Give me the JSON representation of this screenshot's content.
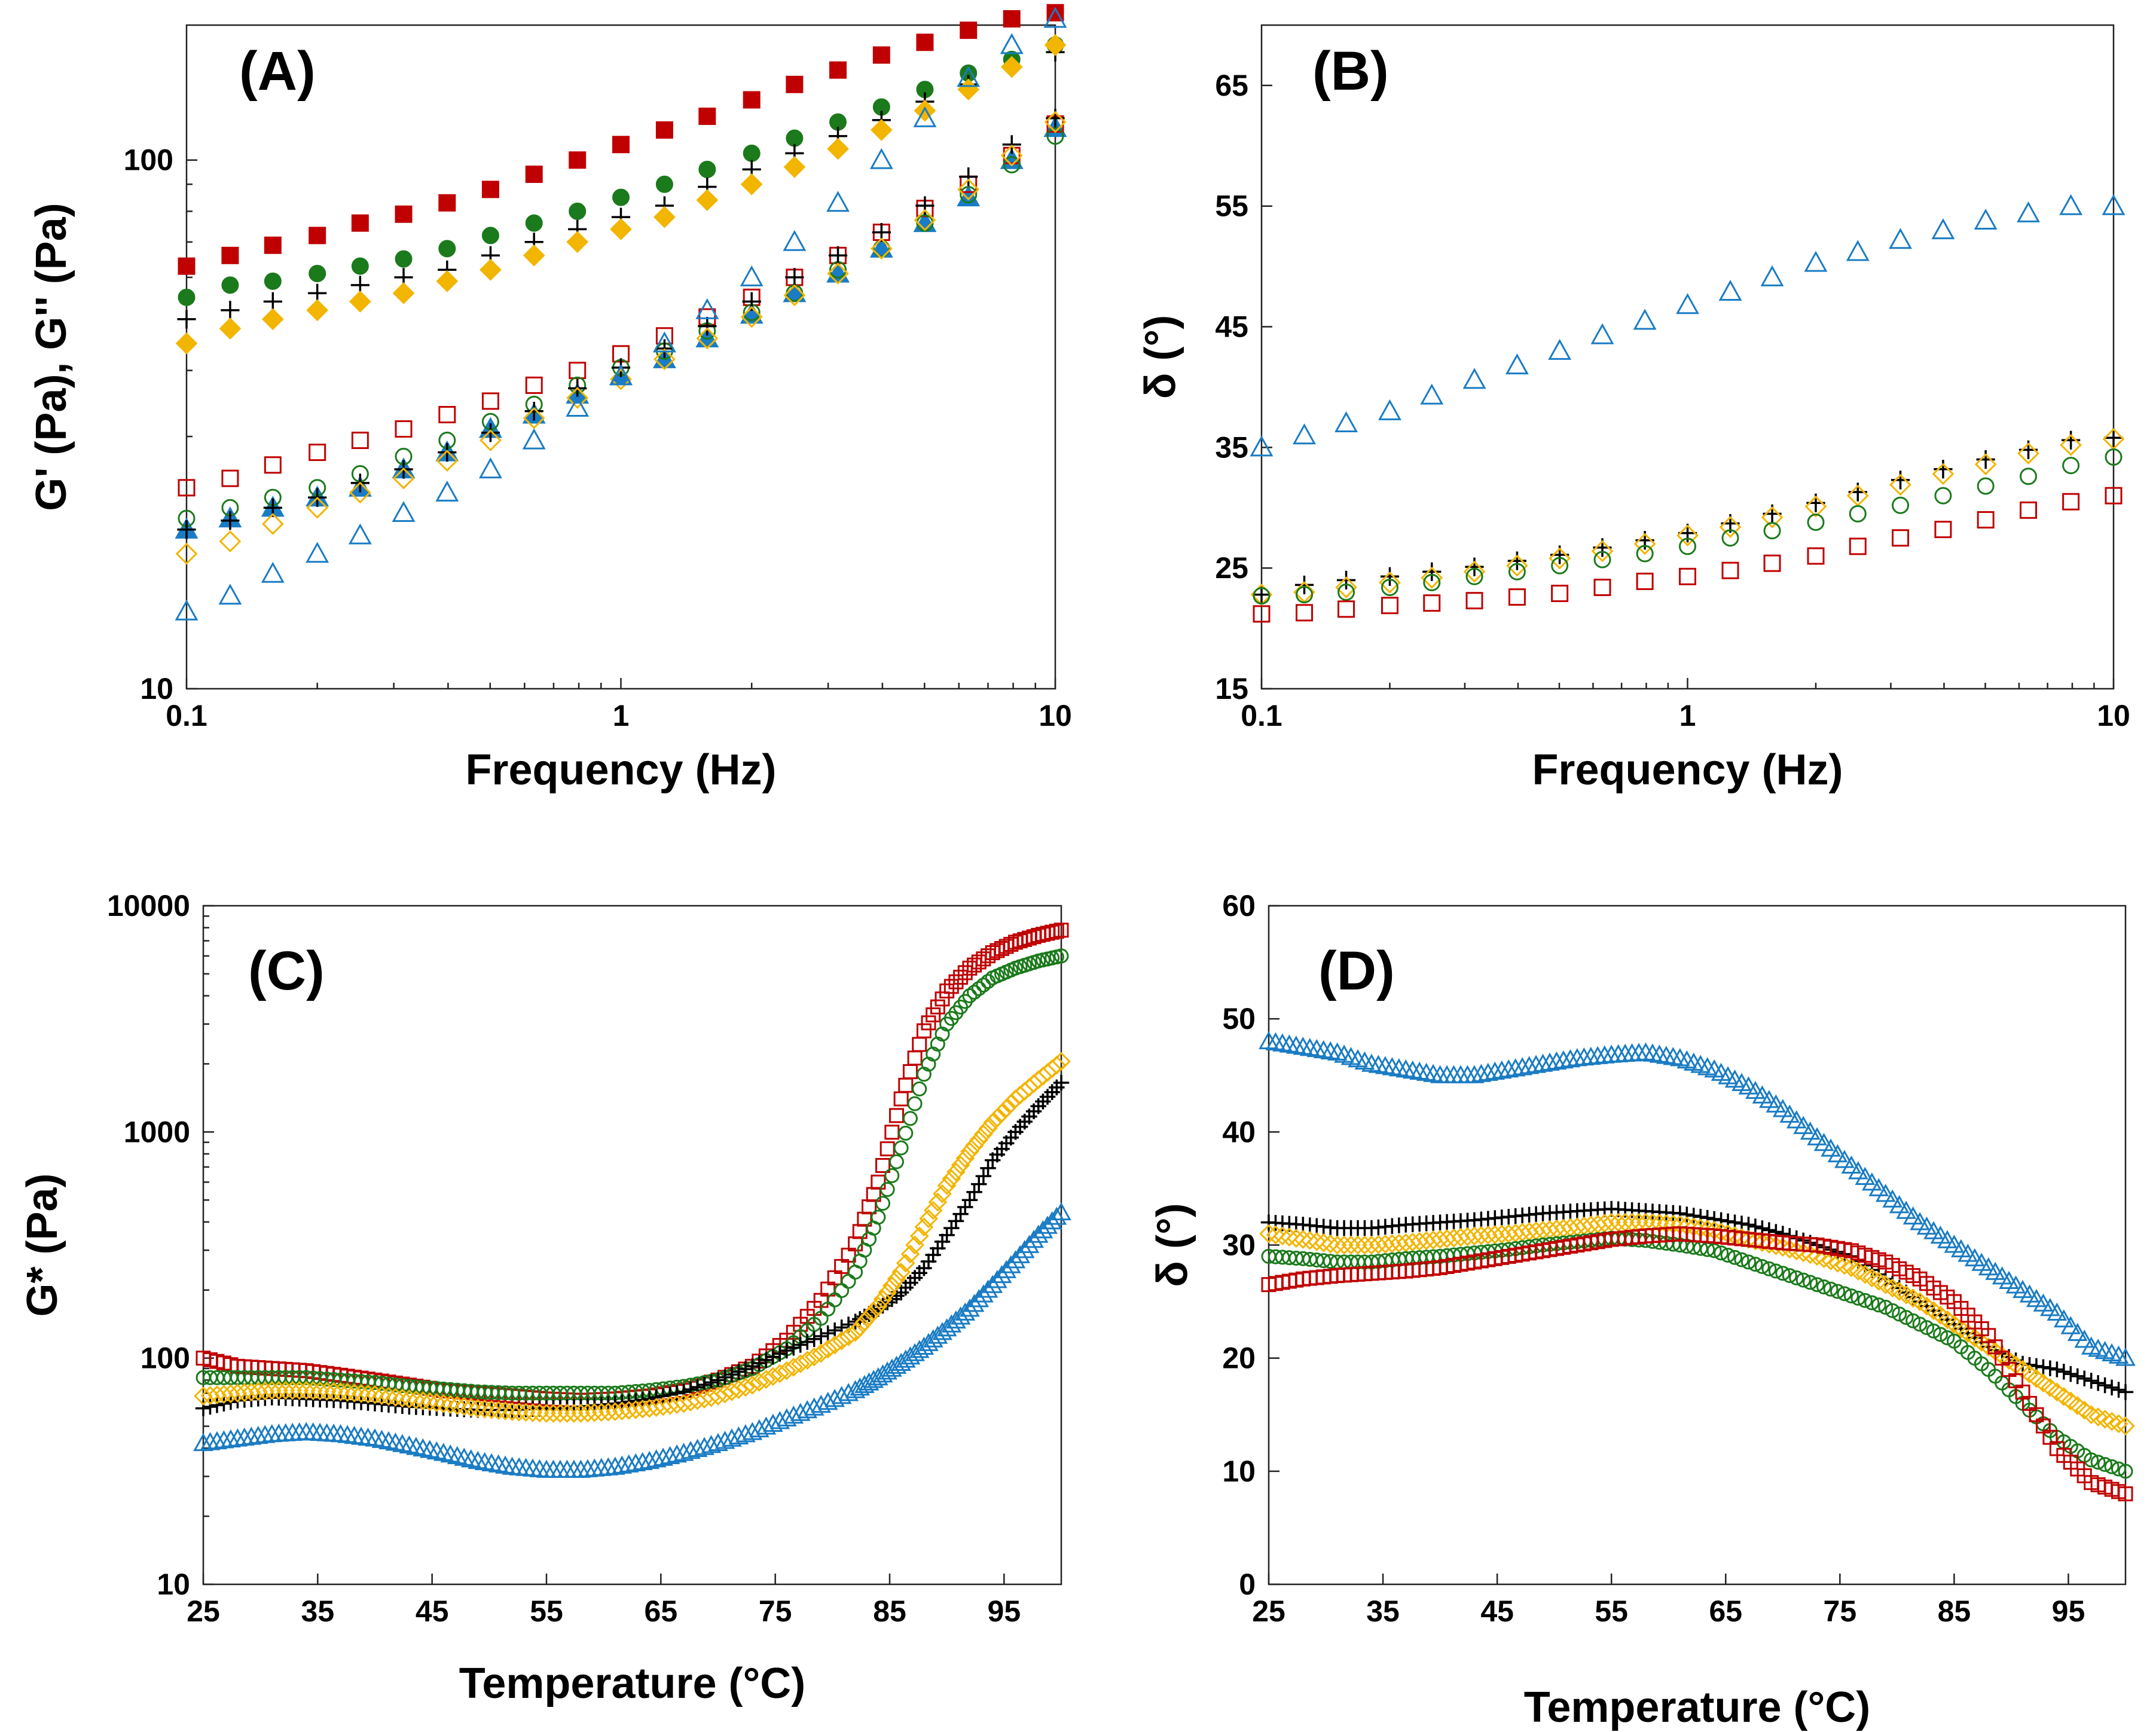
{
  "colors": {
    "red": "#c00000",
    "green": "#1b7a1b",
    "black": "#000000",
    "gold": "#f2b500",
    "blue": "#1a7cc4"
  },
  "chart_data": [
    {
      "panel": "A",
      "label": "(A)",
      "type": "scatter",
      "x_scale": "log",
      "y_scale": "log",
      "xlim": [
        0.1,
        10
      ],
      "ylim": [
        10,
        180
      ],
      "xticks": [
        0.1,
        1,
        10
      ],
      "xtick_labels": [
        "0.1",
        "1",
        "10"
      ],
      "yticks": [
        10,
        100
      ],
      "ytick_labels": [
        "10",
        "100"
      ],
      "xlabel": "Frequency (Hz)",
      "ylabel": "G' (Pa), G'' (Pa)",
      "x": [
        0.1,
        0.126,
        0.158,
        0.2,
        0.251,
        0.316,
        0.398,
        0.501,
        0.631,
        0.794,
        1.0,
        1.26,
        1.58,
        2.0,
        2.51,
        3.16,
        3.98,
        5.01,
        6.31,
        7.94,
        10.0
      ],
      "series": [
        {
          "name": "G' red",
          "color": "red",
          "marker": "square",
          "filled": true,
          "values": [
            63,
            66,
            69,
            72,
            76,
            79,
            83,
            88,
            94,
            100,
            107,
            114,
            121,
            130,
            139,
            148,
            158,
            167,
            176,
            185,
            190
          ]
        },
        {
          "name": "G' green",
          "color": "green",
          "marker": "circle",
          "filled": true,
          "values": [
            55,
            58,
            59,
            61,
            63,
            65,
            68,
            72,
            76,
            80,
            85,
            90,
            96,
            103,
            110,
            118,
            126,
            136,
            146,
            155,
            165
          ]
        },
        {
          "name": "G' black",
          "color": "black",
          "marker": "plus",
          "filled": false,
          "values": [
            50,
            52,
            54,
            56,
            58,
            60,
            62,
            66,
            70,
            74,
            78,
            82,
            89,
            96,
            103,
            111,
            119,
            129,
            139,
            150,
            160
          ]
        },
        {
          "name": "G' gold",
          "color": "gold",
          "marker": "diamond",
          "filled": true,
          "values": [
            45,
            48,
            50,
            52,
            54,
            56,
            59,
            62,
            66,
            70,
            74,
            78,
            84,
            90,
            97,
            105,
            114,
            124,
            136,
            150,
            165
          ]
        },
        {
          "name": "G' blue",
          "color": "blue",
          "marker": "triangle",
          "filled": true,
          "values": [
            20,
            21,
            22,
            23,
            24,
            26,
            28,
            31,
            33,
            36,
            39,
            42,
            46,
            51,
            56,
            61,
            68,
            76,
            85,
            100,
            115
          ]
        },
        {
          "name": "G'' red",
          "color": "red",
          "marker": "square",
          "filled": false,
          "values": [
            24,
            25,
            26.5,
            28,
            29.5,
            31,
            33,
            35,
            37.5,
            40,
            43,
            46.5,
            50.5,
            55,
            60,
            66,
            73,
            81,
            90,
            102,
            117
          ]
        },
        {
          "name": "G'' green",
          "color": "green",
          "marker": "circle",
          "filled": false,
          "values": [
            21,
            22,
            23,
            24,
            25.5,
            27.5,
            29.5,
            32,
            34.5,
            37.5,
            40.5,
            43.5,
            47.5,
            51.5,
            56,
            62,
            68,
            76,
            86,
            98,
            111
          ]
        },
        {
          "name": "G'' black",
          "color": "black",
          "marker": "plus",
          "filled": false,
          "values": [
            20,
            20.8,
            22,
            23,
            24.5,
            26,
            28,
            30.5,
            33.5,
            37,
            40.5,
            44,
            48.5,
            54,
            60,
            66,
            73,
            82,
            93,
            107,
            120
          ]
        },
        {
          "name": "G'' gold",
          "color": "gold",
          "marker": "diamond",
          "filled": false,
          "values": [
            18,
            19,
            20.5,
            22,
            23.5,
            25,
            27,
            29.5,
            32.5,
            35.5,
            38.5,
            42,
            46,
            50.5,
            55.5,
            61,
            68,
            77,
            88,
            102,
            118
          ]
        },
        {
          "name": "G'' blue",
          "color": "blue",
          "marker": "triangle",
          "filled": false,
          "values": [
            14,
            15,
            16.5,
            18,
            19.5,
            21.5,
            23.5,
            26,
            29.5,
            34,
            39,
            45,
            52,
            60,
            70,
            83,
            100,
            120,
            143,
            165,
            185
          ]
        }
      ]
    },
    {
      "panel": "B",
      "label": "(B)",
      "type": "scatter",
      "x_scale": "log",
      "y_scale": "linear",
      "xlim": [
        0.1,
        10
      ],
      "ylim": [
        15,
        70
      ],
      "xticks": [
        0.1,
        1,
        10
      ],
      "xtick_labels": [
        "0.1",
        "1",
        "10"
      ],
      "yticks": [
        15,
        25,
        35,
        45,
        55,
        65
      ],
      "ytick_labels": [
        "15",
        "25",
        "35",
        "45",
        "55",
        "65"
      ],
      "xlabel": "Frequency (Hz)",
      "ylabel": "δ (°)",
      "x": [
        0.1,
        0.126,
        0.158,
        0.2,
        0.251,
        0.316,
        0.398,
        0.501,
        0.631,
        0.794,
        1.0,
        1.26,
        1.58,
        2.0,
        2.51,
        3.16,
        3.98,
        5.01,
        6.31,
        7.94,
        10.0
      ],
      "series": [
        {
          "name": "blue",
          "color": "blue",
          "marker": "triangle",
          "filled": false,
          "values": [
            35,
            36,
            37,
            38,
            39.3,
            40.6,
            41.8,
            43,
            44.3,
            45.5,
            46.8,
            47.9,
            49.1,
            50.3,
            51.2,
            52.2,
            53,
            53.8,
            54.4,
            55,
            55
          ]
        },
        {
          "name": "black",
          "color": "black",
          "marker": "plus",
          "filled": false,
          "values": [
            22.8,
            23.6,
            24,
            24.3,
            24.7,
            25.1,
            25.6,
            26.1,
            26.7,
            27.3,
            27.9,
            28.7,
            29.5,
            30.4,
            31.3,
            32.3,
            33.2,
            34,
            34.8,
            35.6,
            35.8
          ]
        },
        {
          "name": "gold",
          "color": "gold",
          "marker": "diamond",
          "filled": false,
          "values": [
            22.8,
            23,
            23.4,
            23.8,
            24.2,
            24.7,
            25.2,
            25.8,
            26.4,
            27,
            27.7,
            28.4,
            29.2,
            30.1,
            31,
            31.9,
            32.8,
            33.6,
            34.5,
            35.2,
            35.7
          ]
        },
        {
          "name": "green",
          "color": "green",
          "marker": "circle",
          "filled": false,
          "values": [
            22.7,
            22.8,
            23,
            23.4,
            23.8,
            24.3,
            24.7,
            25.2,
            25.7,
            26.2,
            26.8,
            27.5,
            28.1,
            28.8,
            29.5,
            30.2,
            31,
            31.8,
            32.6,
            33.5,
            34.2
          ]
        },
        {
          "name": "red",
          "color": "red",
          "marker": "square",
          "filled": false,
          "values": [
            21.2,
            21.3,
            21.6,
            21.9,
            22.1,
            22.3,
            22.6,
            22.9,
            23.4,
            23.9,
            24.3,
            24.8,
            25.4,
            26,
            26.8,
            27.5,
            28.2,
            29,
            29.8,
            30.5,
            31
          ]
        }
      ]
    },
    {
      "panel": "C",
      "label": "(C)",
      "type": "scatter",
      "x_scale": "linear",
      "y_scale": "log",
      "xlim": [
        25,
        100
      ],
      "ylim": [
        10,
        10000
      ],
      "xticks": [
        25,
        35,
        45,
        55,
        65,
        75,
        85,
        95
      ],
      "xtick_labels": [
        "25",
        "35",
        "45",
        "55",
        "65",
        "75",
        "85",
        "95"
      ],
      "yticks": [
        10,
        100,
        1000,
        10000
      ],
      "ytick_labels": [
        "10",
        "100",
        "1000",
        "10000"
      ],
      "xlabel": "Temperature (°C)",
      "ylabel": "G* (Pa)",
      "x": [
        25,
        28,
        31,
        34,
        37,
        40,
        43,
        46,
        49,
        52,
        55,
        58,
        61,
        64,
        67,
        70,
        73,
        76,
        79,
        82,
        84,
        86,
        88,
        90,
        92,
        94,
        96,
        98,
        100
      ],
      "series": [
        {
          "name": "red",
          "color": "red",
          "marker": "square",
          "filled": false,
          "values": [
            100,
            92,
            90,
            88,
            84,
            80,
            76,
            72,
            70,
            68,
            66,
            65,
            66,
            68,
            72,
            80,
            92,
            120,
            180,
            320,
            600,
            1400,
            2800,
            4200,
            5300,
            6200,
            6900,
            7400,
            7800
          ]
        },
        {
          "name": "green",
          "color": "green",
          "marker": "circle",
          "filled": false,
          "values": [
            82,
            82,
            82,
            82,
            80,
            78,
            75,
            73,
            71,
            70,
            70,
            70,
            70,
            72,
            75,
            80,
            90,
            110,
            150,
            240,
            420,
            850,
            1800,
            3000,
            4000,
            4800,
            5300,
            5700,
            6000
          ]
        },
        {
          "name": "black",
          "color": "black",
          "marker": "plus",
          "filled": false,
          "values": [
            60,
            65,
            67,
            66,
            65,
            63,
            61,
            60,
            59,
            59,
            60,
            61,
            63,
            66,
            71,
            80,
            92,
            108,
            125,
            145,
            165,
            195,
            250,
            350,
            500,
            750,
            1000,
            1300,
            1650
          ]
        },
        {
          "name": "gold",
          "color": "gold",
          "marker": "diamond",
          "filled": false,
          "values": [
            68,
            70,
            72,
            72,
            71,
            69,
            66,
            63,
            60,
            58,
            57,
            57,
            58,
            60,
            63,
            68,
            76,
            88,
            105,
            130,
            170,
            240,
            380,
            580,
            820,
            1100,
            1400,
            1700,
            2050
          ]
        },
        {
          "name": "blue",
          "color": "blue",
          "marker": "triangle",
          "filled": false,
          "values": [
            42,
            44,
            46,
            47,
            46,
            44,
            41,
            38,
            35,
            33,
            32,
            32,
            33,
            35,
            38,
            42,
            47,
            54,
            62,
            72,
            82,
            95,
            112,
            135,
            165,
            210,
            270,
            350,
            440
          ]
        }
      ]
    },
    {
      "panel": "D",
      "label": "(D)",
      "type": "scatter",
      "x_scale": "linear",
      "y_scale": "linear",
      "xlim": [
        25,
        100
      ],
      "ylim": [
        0,
        60
      ],
      "xticks": [
        25,
        35,
        45,
        55,
        65,
        75,
        85,
        95
      ],
      "xtick_labels": [
        "25",
        "35",
        "45",
        "55",
        "65",
        "75",
        "85",
        "95"
      ],
      "yticks": [
        0,
        10,
        20,
        30,
        40,
        50,
        60
      ],
      "ytick_labels": [
        "0",
        "10",
        "20",
        "30",
        "40",
        "50",
        "60"
      ],
      "xlabel": "Temperature (°C)",
      "ylabel": "δ (°)",
      "x": [
        25,
        28,
        31,
        34,
        37,
        40,
        43,
        46,
        49,
        52,
        55,
        58,
        61,
        64,
        67,
        70,
        73,
        76,
        79,
        82,
        85,
        88,
        91,
        94,
        97,
        100
      ],
      "series": [
        {
          "name": "blue",
          "color": "blue",
          "marker": "triangle",
          "filled": false,
          "values": [
            48,
            47.5,
            47,
            46,
            45.5,
            45,
            45,
            45.5,
            46,
            46.5,
            46.8,
            47,
            46.5,
            45.5,
            44,
            42,
            39.5,
            37,
            34.5,
            32,
            30,
            28,
            26,
            24,
            21,
            20
          ]
        },
        {
          "name": "black",
          "color": "black",
          "marker": "plus",
          "filled": false,
          "values": [
            32,
            31.8,
            31.5,
            31.5,
            31.8,
            32,
            32.2,
            32.5,
            32.8,
            33,
            33.2,
            33,
            32.8,
            32.3,
            31.8,
            31,
            30,
            29,
            27,
            25,
            23,
            21,
            19.5,
            19,
            18,
            17
          ]
        },
        {
          "name": "gold",
          "color": "gold",
          "marker": "diamond",
          "filled": false,
          "values": [
            31,
            30.5,
            30,
            30,
            30.2,
            30.5,
            30.8,
            31,
            31.3,
            31.6,
            32,
            32,
            31.8,
            31.3,
            30.5,
            29.8,
            29,
            28,
            26.5,
            25,
            23,
            21,
            19,
            17,
            15,
            14
          ]
        },
        {
          "name": "green",
          "color": "green",
          "marker": "circle",
          "filled": false,
          "values": [
            29,
            28.8,
            28.5,
            28.5,
            28.8,
            29,
            29.3,
            29.6,
            30,
            30.3,
            30.6,
            30.4,
            30,
            29.5,
            28.5,
            27.5,
            26.5,
            25.5,
            24.5,
            23,
            21.5,
            19,
            16,
            13,
            11,
            10
          ]
        },
        {
          "name": "red",
          "color": "red",
          "marker": "square",
          "filled": false,
          "values": [
            26.5,
            27,
            27.3,
            27.5,
            27.7,
            28,
            28.5,
            29,
            29.5,
            30,
            30.5,
            30.8,
            31,
            30.8,
            30.5,
            30.2,
            30,
            29.5,
            28.5,
            27,
            25,
            22,
            17,
            12,
            9,
            8
          ]
        }
      ]
    }
  ]
}
